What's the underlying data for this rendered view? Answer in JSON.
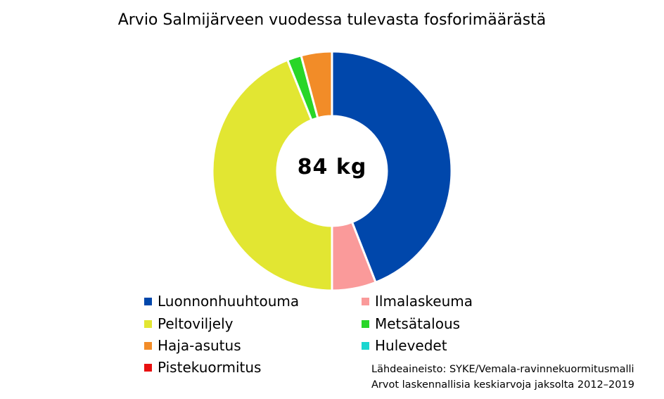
{
  "chart_data": {
    "type": "pie",
    "title": "Arvio Salmijärveen vuodessa tulevasta fosforimäärästä",
    "center_label": "84 kg",
    "series": [
      {
        "name": "Luonnonhuuhtouma",
        "value": 37.0,
        "color": "#0047ab"
      },
      {
        "name": "Ilmalaskeuma",
        "value": 5.0,
        "color": "#fa9a9a"
      },
      {
        "name": "Peltoviljely",
        "value": 36.9,
        "color": "#e2e632"
      },
      {
        "name": "Metsätalous",
        "value": 1.6,
        "color": "#28d628"
      },
      {
        "name": "Haja-asutus",
        "value": 3.5,
        "color": "#f28c28"
      },
      {
        "name": "Hulevedet",
        "value": 0,
        "color": "#1ad6d0"
      },
      {
        "name": "Pistekuormitus",
        "value": 0,
        "color": "#e81010"
      }
    ],
    "legend": [
      {
        "label": "Luonnonhuuhtouma",
        "color": "#0047ab"
      },
      {
        "label": "Ilmalaskeuma",
        "color": "#fa9a9a"
      },
      {
        "label": "Peltoviljely",
        "color": "#e2e632"
      },
      {
        "label": "Metsätalous",
        "color": "#28d628"
      },
      {
        "label": "Haja-asutus",
        "color": "#f28c28"
      },
      {
        "label": "Hulevedet",
        "color": "#1ad6d0"
      },
      {
        "label": "Pistekuormitus",
        "color": "#e81010"
      }
    ],
    "source_lines": [
      "Lähdeaineisto: SYKE/Vemala-ravinnekuormitusmalli",
      "Arvot laskennallisia keskiarvoja jaksolta 2012–2019"
    ]
  }
}
